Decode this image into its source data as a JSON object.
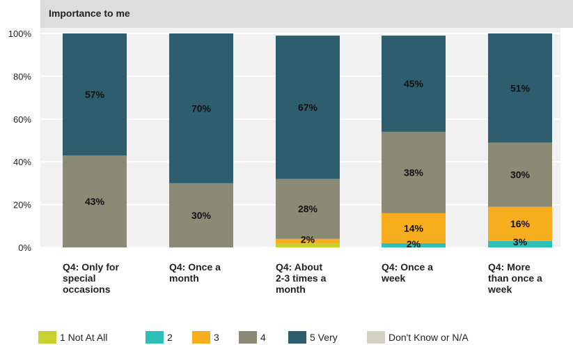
{
  "chart_data": {
    "type": "bar",
    "stacked": true,
    "title": "Importance to me",
    "categories": [
      [
        "Q4: Only for",
        "special",
        "occasions"
      ],
      [
        "Q4: Once a",
        "month"
      ],
      [
        "Q4: About",
        "2-3 times a",
        "month"
      ],
      [
        "Q4: Once a",
        "week"
      ],
      [
        "Q4: More",
        "than once a",
        "week"
      ]
    ],
    "ylim": [
      0,
      100
    ],
    "yticks": [
      "0%",
      "20%",
      "40%",
      "60%",
      "80%",
      "100%"
    ],
    "grid": true,
    "legend_position": "bottom",
    "series": [
      {
        "name": "1 Not At All",
        "color": "#c8d12e",
        "values": [
          0,
          0,
          2,
          0,
          0
        ],
        "labels": [
          "",
          "",
          "",
          "",
          ""
        ]
      },
      {
        "name": "2",
        "color": "#2ebfb8",
        "values": [
          0,
          0,
          0,
          2,
          3
        ],
        "labels": [
          "",
          "",
          "",
          "2%",
          "3%"
        ]
      },
      {
        "name": "3",
        "color": "#f6ae1e",
        "values": [
          0,
          0,
          2,
          14,
          16
        ],
        "labels": [
          "",
          "",
          "2%",
          "14%",
          "16%"
        ]
      },
      {
        "name": "4",
        "color": "#8b8a76",
        "values": [
          43,
          30,
          28,
          38,
          30
        ],
        "labels": [
          "43%",
          "30%",
          "28%",
          "38%",
          "30%"
        ]
      },
      {
        "name": "5 Very",
        "color": "#2e5e6e",
        "values": [
          57,
          70,
          67,
          45,
          51
        ],
        "labels": [
          "57%",
          "70%",
          "67%",
          "45%",
          "51%"
        ]
      },
      {
        "name": "Don't Know or N/A",
        "color": "#d2d2c0",
        "values": [
          0,
          0,
          0,
          0,
          0
        ],
        "labels": [
          "",
          "",
          "",
          "",
          ""
        ]
      }
    ]
  }
}
